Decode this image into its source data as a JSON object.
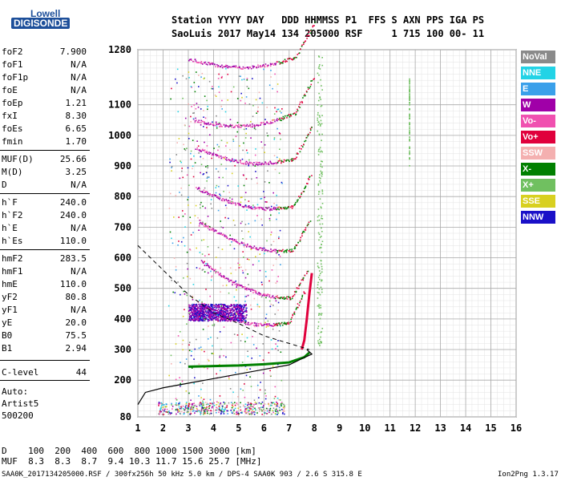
{
  "logo": {
    "line1": "Lowell",
    "line2": "DIGISONDE"
  },
  "header": {
    "line1": "Station YYYY DAY   DDD HHMMSS P1  FFS S AXN PPS IGA PS",
    "line2": "SaoLuis 2017 May14 134 205000 RSF     1 715 100 00- 11"
  },
  "params": [
    {
      "k": "foF2",
      "v": "7.900"
    },
    {
      "k": "foF1",
      "v": "N/A"
    },
    {
      "k": "foF1p",
      "v": "N/A"
    },
    {
      "k": "foE",
      "v": "N/A"
    },
    {
      "k": "foEp",
      "v": "1.21"
    },
    {
      "k": "fxI",
      "v": "8.30"
    },
    {
      "k": "foEs",
      "v": "6.65"
    },
    {
      "k": "fmin",
      "v": "1.70"
    },
    {
      "k": "MUF(D)",
      "v": "25.66"
    },
    {
      "k": "M(D)",
      "v": "3.25"
    },
    {
      "k": "D",
      "v": "N/A"
    },
    {
      "k": "h`F",
      "v": "240.0"
    },
    {
      "k": "h`F2",
      "v": "240.0"
    },
    {
      "k": "h`E",
      "v": "N/A"
    },
    {
      "k": "h`Es",
      "v": "110.0"
    },
    {
      "k": "hmF2",
      "v": "283.5"
    },
    {
      "k": "hmF1",
      "v": "N/A"
    },
    {
      "k": "hmE",
      "v": "110.0"
    },
    {
      "k": "yF2",
      "v": "80.8"
    },
    {
      "k": "yF1",
      "v": "N/A"
    },
    {
      "k": "yE",
      "v": "20.0"
    },
    {
      "k": "B0",
      "v": "75.5"
    },
    {
      "k": "B1",
      "v": "2.94"
    },
    {
      "k": "C-level",
      "v": "44"
    }
  ],
  "auto": [
    "Auto:",
    "Artist5",
    "500200"
  ],
  "legend": [
    {
      "label": "NoVal",
      "color": "#8a8a8a"
    },
    {
      "label": "NNE",
      "color": "#22d3e6"
    },
    {
      "label": "E",
      "color": "#3aa0ea"
    },
    {
      "label": "W",
      "color": "#a000a8"
    },
    {
      "label": "Vo-",
      "color": "#f050b0"
    },
    {
      "label": "Vo+",
      "color": "#e0003c"
    },
    {
      "label": "SSW",
      "color": "#f4b0b0"
    },
    {
      "label": "X-",
      "color": "#008000"
    },
    {
      "label": "X+",
      "color": "#70c060"
    },
    {
      "label": "SSE",
      "color": "#d8d020"
    },
    {
      "label": "NNW",
      "color": "#1a10c8"
    }
  ],
  "bottom": {
    "line1": "D    100  200  400  600  800 1000 1500 3000 [km]",
    "line2": "MUF  8.3  8.3  8.7  9.4 10.3 11.7 15.6 25.7 [MHz]"
  },
  "footer": "SAA0K_2017134205000.RSF / 300fx256h 50 kHz 5.0 km / DPS-4 SAA0K 903 / 2.6 S 315.8 E",
  "version": "Ion2Png 1.3.17",
  "chart_data": {
    "type": "scatter",
    "x_ticks": [
      1,
      2,
      3,
      4,
      5,
      6,
      7,
      8,
      9,
      10,
      11,
      12,
      13,
      14,
      15,
      16
    ],
    "y_ticks": [
      80,
      200,
      300,
      400,
      500,
      600,
      700,
      800,
      900,
      1000,
      1100,
      1280
    ],
    "xlim": [
      1,
      16
    ],
    "ylim": [
      80,
      1280
    ],
    "grid": true,
    "legend_position": "right",
    "series": [
      {
        "name": "X-",
        "values": [
          [
            7.8,
            290
          ],
          [
            7.6,
            275
          ],
          [
            7.0,
            258
          ],
          [
            6.0,
            252
          ],
          [
            5.0,
            248
          ],
          [
            4.0,
            246
          ],
          [
            3.0,
            244
          ]
        ]
      },
      {
        "name": "Vo+",
        "values": [
          [
            7.9,
            550
          ],
          [
            7.8,
            480
          ],
          [
            7.7,
            400
          ],
          [
            7.6,
            330
          ],
          [
            7.5,
            300
          ]
        ]
      }
    ],
    "profile_curve": [
      [
        1.0,
        120
      ],
      [
        1.3,
        160
      ],
      [
        2,
        175
      ],
      [
        3,
        190
      ],
      [
        4,
        205
      ],
      [
        5,
        220
      ],
      [
        6,
        235
      ],
      [
        7,
        250
      ],
      [
        7.5,
        270
      ],
      [
        7.9,
        285
      ],
      [
        7.7,
        300
      ]
    ],
    "muf_dashed_curve": [
      [
        1.0,
        640
      ],
      [
        2,
        560
      ],
      [
        3,
        480
      ],
      [
        4,
        420
      ],
      [
        5,
        385
      ],
      [
        6,
        345
      ],
      [
        7,
        320
      ],
      [
        7.8,
        300
      ]
    ]
  }
}
